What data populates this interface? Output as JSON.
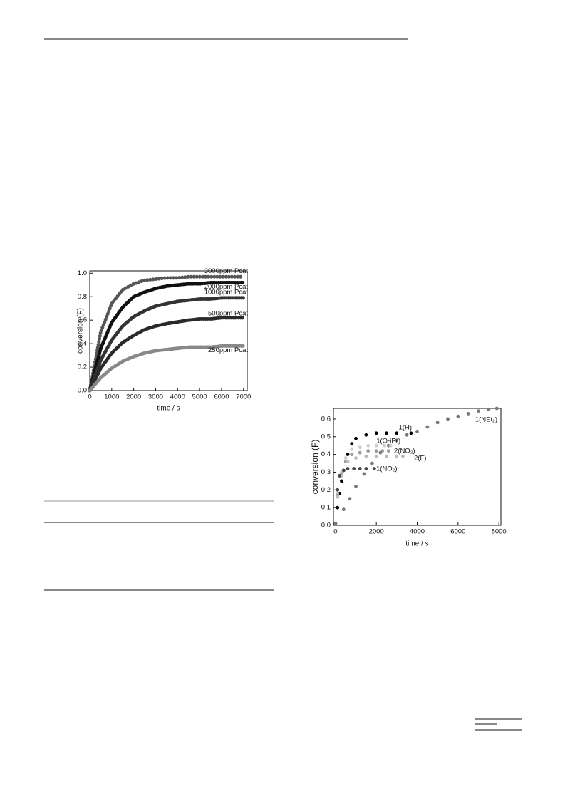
{
  "chart_data": [
    {
      "type": "line",
      "x_label": "time / s",
      "y_label": "conversion (F)",
      "x": [
        0,
        500,
        1000,
        1500,
        2000,
        2500,
        3000,
        3500,
        4000,
        4500,
        5000,
        5500,
        6000,
        6500,
        7000
      ],
      "series": [
        {
          "name": "3000ppm  Pcat",
          "color": "#555555",
          "values": [
            0,
            0.5,
            0.74,
            0.86,
            0.91,
            0.94,
            0.95,
            0.96,
            0.96,
            0.97,
            0.97,
            0.97,
            0.97,
            0.97,
            0.97
          ]
        },
        {
          "name": "2000ppm  Pcat",
          "color": "#111111",
          "values": [
            0,
            0.36,
            0.58,
            0.71,
            0.8,
            0.84,
            0.87,
            0.89,
            0.9,
            0.91,
            0.91,
            0.92,
            0.92,
            0.92,
            0.92
          ]
        },
        {
          "name": "1000ppm  Pcat",
          "color": "#333333",
          "values": [
            0,
            0.26,
            0.43,
            0.55,
            0.63,
            0.68,
            0.72,
            0.74,
            0.76,
            0.77,
            0.78,
            0.78,
            0.79,
            0.79,
            0.79
          ]
        },
        {
          "name": "500ppm  Pcat",
          "color": "#2a2a2a",
          "values": [
            0,
            0.19,
            0.32,
            0.41,
            0.47,
            0.52,
            0.55,
            0.57,
            0.585,
            0.6,
            0.61,
            0.61,
            0.62,
            0.62,
            0.62
          ]
        },
        {
          "name": "250ppm  Pcat",
          "color": "#888888",
          "values": [
            0,
            0.11,
            0.19,
            0.25,
            0.29,
            0.32,
            0.34,
            0.35,
            0.36,
            0.37,
            0.37,
            0.37,
            0.38,
            0.38,
            0.38
          ]
        }
      ],
      "xlim": [
        0,
        7170
      ],
      "ylim": [
        0,
        1.02
      ],
      "xticks": [
        0,
        1000,
        2000,
        3000,
        4000,
        5000,
        6000,
        7000
      ],
      "yticks": [
        {
          "value": 0,
          "label": "0.0"
        },
        0.2,
        0.4,
        0.6,
        0.8,
        {
          "value": 1,
          "label": "1.0"
        }
      ]
    },
    {
      "type": "scatter",
      "x_label": "time / s",
      "y_label": "conversion (F)",
      "series": [
        {
          "name": "1(H)",
          "color": "#000000",
          "x": [
            0,
            100,
            200,
            300,
            400,
            600,
            800,
            1000,
            1500,
            2000,
            2500,
            3000,
            3700
          ],
          "values": [
            0.01,
            0.1,
            0.18,
            0.25,
            0.31,
            0.4,
            0.46,
            0.49,
            0.51,
            0.52,
            0.52,
            0.52,
            0.52
          ]
        },
        {
          "name": "1(NEt₂)",
          "color": "#777777",
          "x": [
            0,
            400,
            700,
            1000,
            1400,
            1800,
            2200,
            2600,
            3000,
            3500,
            4000,
            4500,
            5000,
            5500,
            6000,
            6500,
            7000,
            7500,
            7900
          ],
          "values": [
            0.01,
            0.09,
            0.15,
            0.22,
            0.29,
            0.35,
            0.41,
            0.45,
            0.48,
            0.51,
            0.53,
            0.555,
            0.58,
            0.6,
            0.615,
            0.63,
            0.645,
            0.655,
            0.66
          ]
        },
        {
          "name": "1(O-iPr)",
          "color": "#cccccc",
          "x": [
            100,
            300,
            500,
            800,
            1200,
            1600,
            2000,
            2400,
            2700
          ],
          "values": [
            0.18,
            0.3,
            0.38,
            0.43,
            0.44,
            0.45,
            0.45,
            0.45,
            0.45
          ]
        },
        {
          "name": "2(NO₂)",
          "color": "#999999",
          "x": [
            100,
            300,
            500,
            800,
            1200,
            1600,
            2000,
            2300,
            2600
          ],
          "values": [
            0.17,
            0.29,
            0.36,
            0.4,
            0.41,
            0.42,
            0.42,
            0.42,
            0.42
          ]
        },
        {
          "name": "2(F)",
          "color": "#bbbbbb",
          "x": [
            100,
            300,
            600,
            1000,
            1500,
            2000,
            2500,
            3000,
            3300
          ],
          "values": [
            0.16,
            0.28,
            0.36,
            0.38,
            0.39,
            0.39,
            0.39,
            0.39,
            0.39
          ]
        },
        {
          "name": "1(NO₂)",
          "color": "#444444",
          "x": [
            100,
            200,
            400,
            600,
            900,
            1200,
            1500,
            1900
          ],
          "values": [
            0.2,
            0.28,
            0.31,
            0.32,
            0.32,
            0.32,
            0.32,
            0.32
          ]
        }
      ],
      "xlim": [
        -100,
        8100
      ],
      "ylim": [
        0,
        0.66
      ],
      "xticks": [
        0,
        2000,
        4000,
        6000,
        8000
      ],
      "yticks": [
        {
          "value": 0,
          "label": "0.0"
        },
        0.1,
        0.2,
        0.3,
        0.4,
        0.5,
        0.6
      ]
    }
  ]
}
